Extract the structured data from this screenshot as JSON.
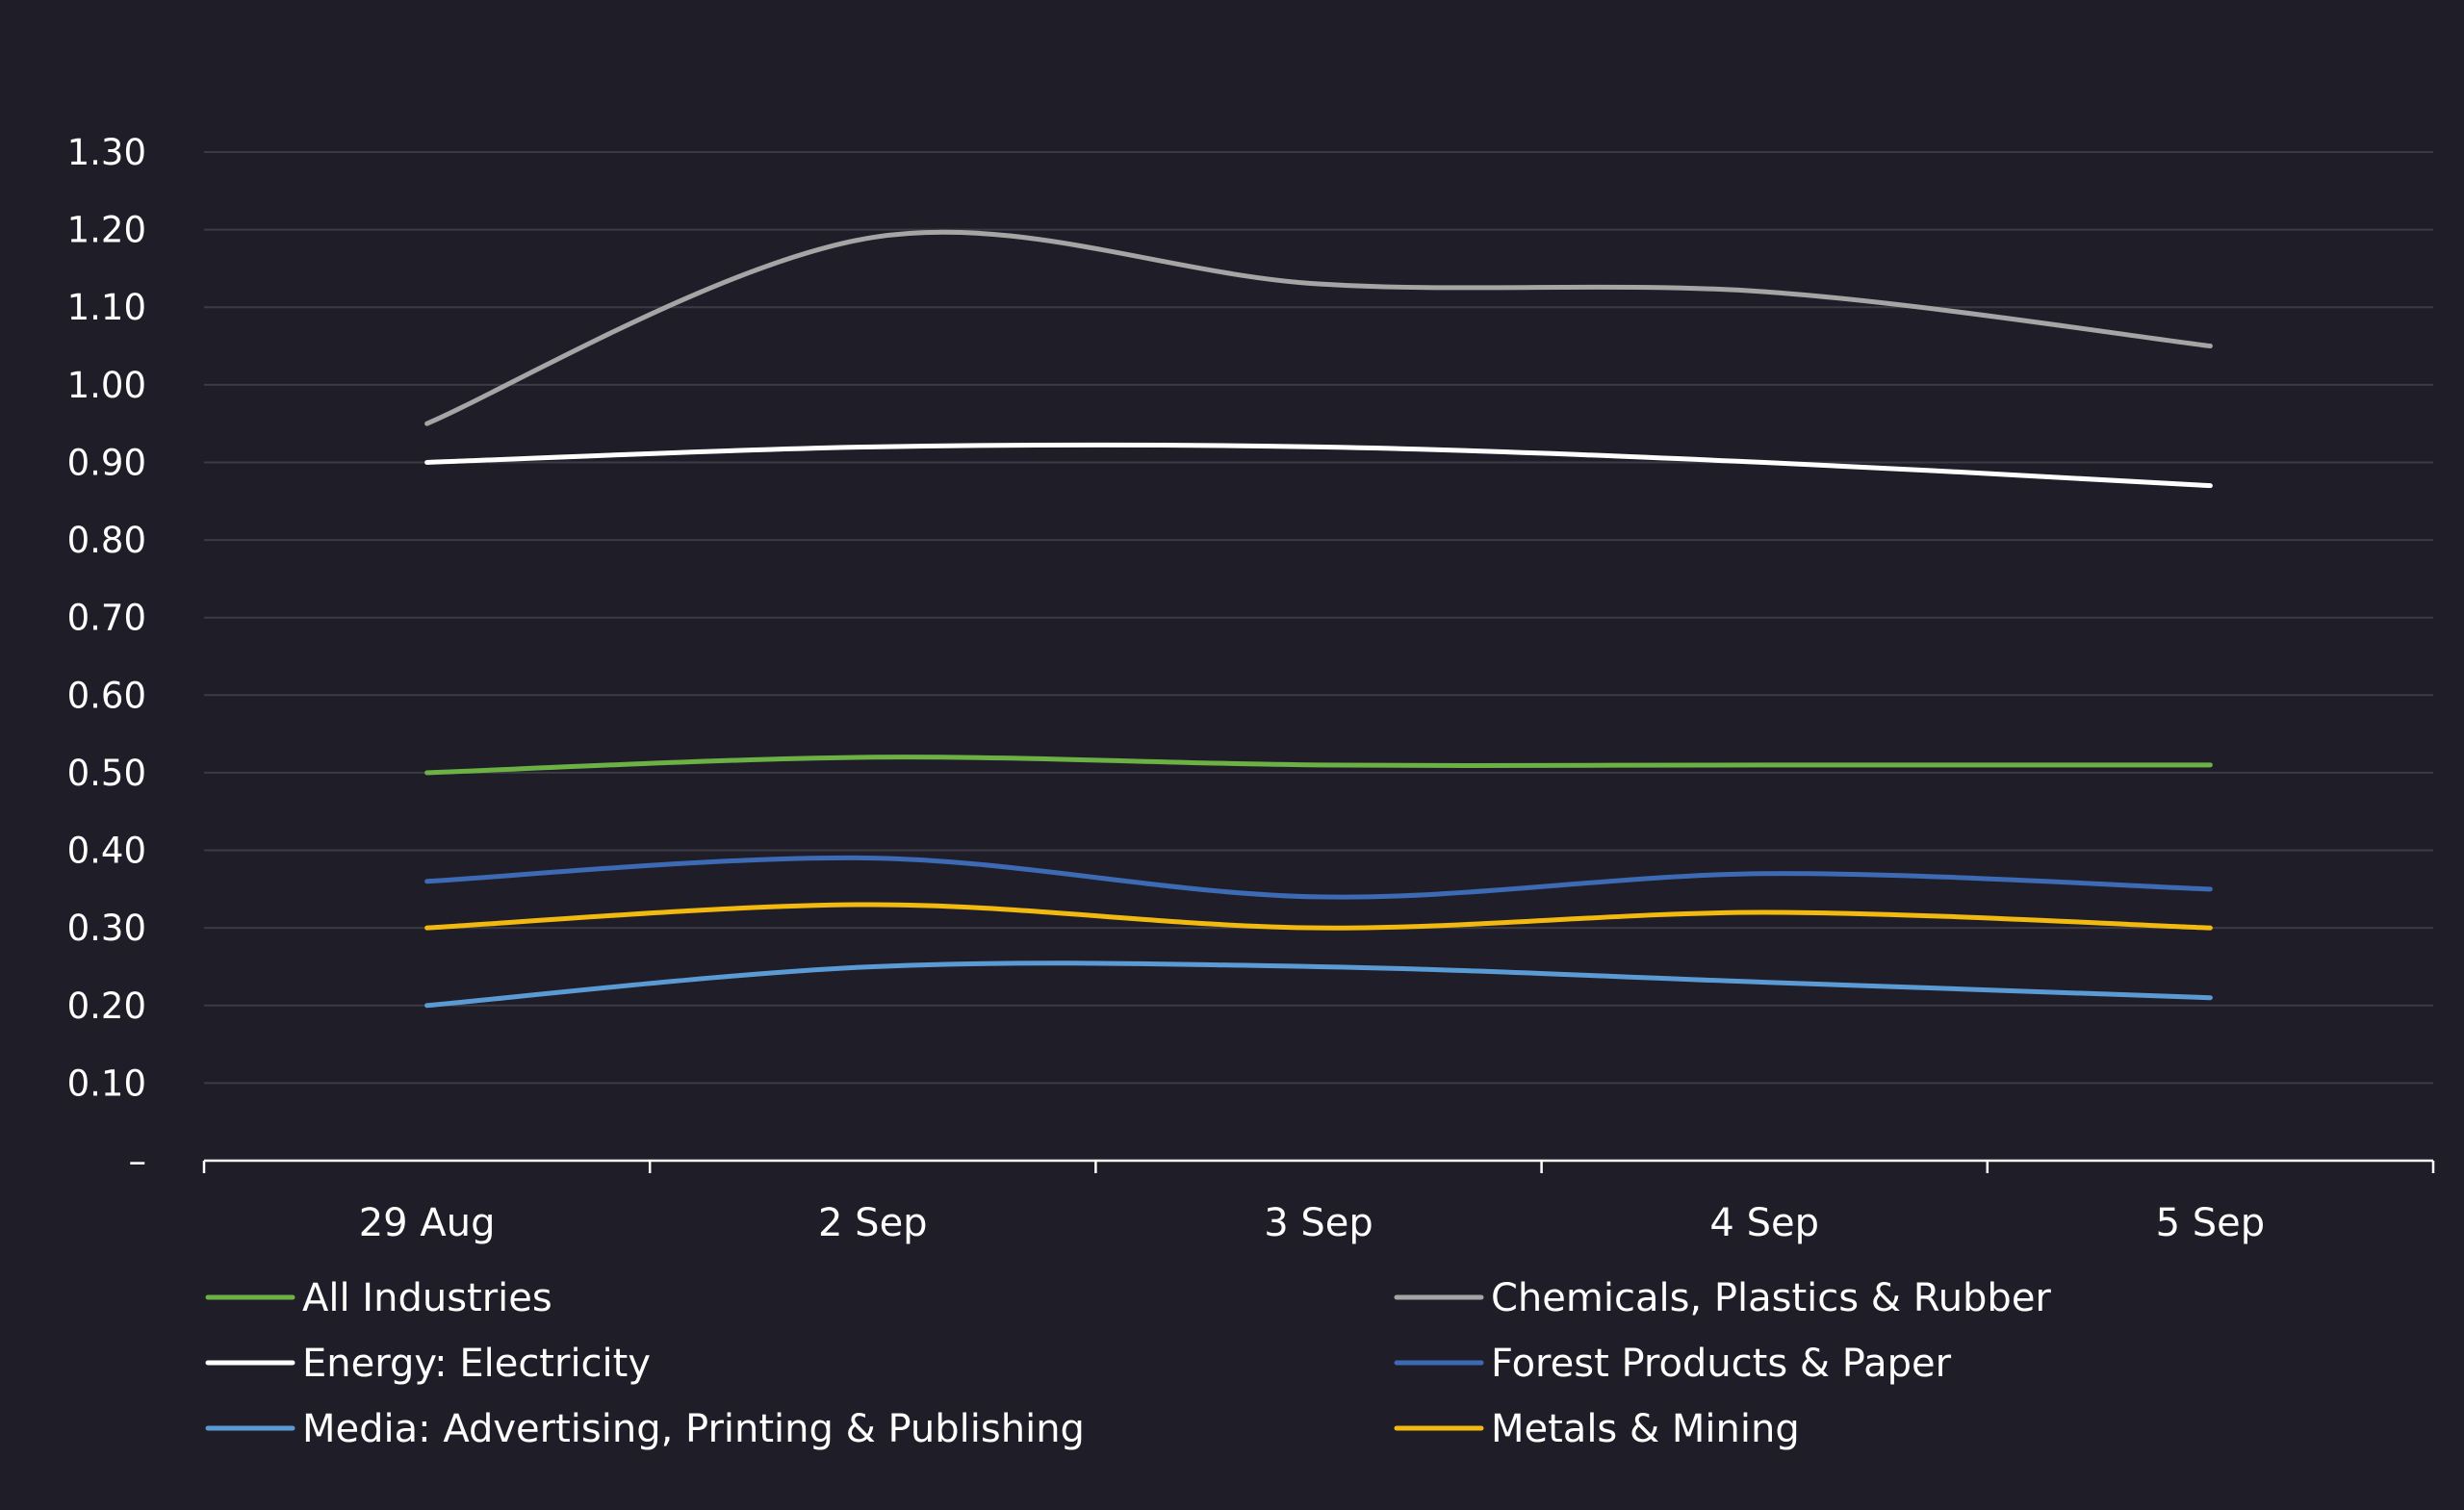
{
  "chart_data": {
    "type": "line",
    "title": "",
    "xlabel": "",
    "ylabel": "",
    "categories": [
      "29 Aug",
      "2 Sep",
      "3 Sep",
      "4 Sep",
      "5 Sep"
    ],
    "ylim": [
      0,
      1.3
    ],
    "y_ticks": [
      0,
      0.1,
      0.2,
      0.3,
      0.4,
      0.5,
      0.6,
      0.7,
      0.8,
      0.9,
      1.0,
      1.1,
      1.2,
      1.3
    ],
    "y_tick_labels": [
      "–",
      "0.10",
      "0.20",
      "0.30",
      "0.40",
      "0.50",
      "0.60",
      "0.70",
      "0.80",
      "0.90",
      "1.00",
      "1.10",
      "1.20",
      "1.30"
    ],
    "grid": true,
    "legend_position": "bottom",
    "series": [
      {
        "name": "All Industries",
        "color": "#6cb143",
        "values": [
          0.5,
          0.52,
          0.51,
          0.51,
          0.51
        ]
      },
      {
        "name": "Chemicals, Plastics & Rubber",
        "color": "#a5a5a5",
        "values": [
          0.95,
          1.19,
          1.13,
          1.12,
          1.05
        ]
      },
      {
        "name": "Energy: Electricity",
        "color": "#ffffff",
        "values": [
          0.9,
          0.92,
          0.92,
          0.9,
          0.87
        ]
      },
      {
        "name": "Forest Products & Paper",
        "color": "#3d6ab5",
        "values": [
          0.36,
          0.39,
          0.34,
          0.37,
          0.35
        ]
      },
      {
        "name": "Media: Advertising, Printing & Publishing",
        "color": "#5b9bd5",
        "values": [
          0.2,
          0.25,
          0.25,
          0.23,
          0.21
        ]
      },
      {
        "name": "Metals & Mining",
        "color": "#f2b90f",
        "values": [
          0.3,
          0.33,
          0.3,
          0.32,
          0.3
        ]
      }
    ]
  }
}
